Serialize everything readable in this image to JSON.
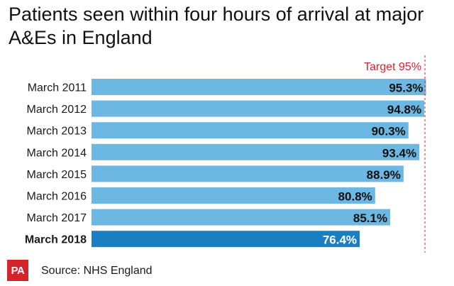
{
  "title": "Patients seen within four hours of arrival at major A&Es in England",
  "source": "Source: NHS England",
  "logo_text": "PA",
  "colors": {
    "bar": "#6cb8e3",
    "bar_highlight": "#1a7ec3",
    "target": "#d4242b",
    "logo": "#d4242b"
  },
  "chart_data": {
    "type": "bar",
    "orientation": "horizontal",
    "categories": [
      "March 2011",
      "March 2012",
      "March 2013",
      "March 2014",
      "March 2015",
      "March 2016",
      "March 2017",
      "March 2018"
    ],
    "values": [
      95.3,
      94.8,
      90.3,
      93.4,
      88.9,
      80.8,
      85.1,
      76.4
    ],
    "value_labels": [
      "95.3%",
      "94.8%",
      "90.3%",
      "93.4%",
      "88.9%",
      "80.8%",
      "85.1%",
      "76.4%"
    ],
    "highlight_index": 7,
    "xlim": [
      0,
      96
    ],
    "target": {
      "value": 95,
      "label": "Target 95%"
    },
    "grid": false,
    "legend": "none"
  }
}
